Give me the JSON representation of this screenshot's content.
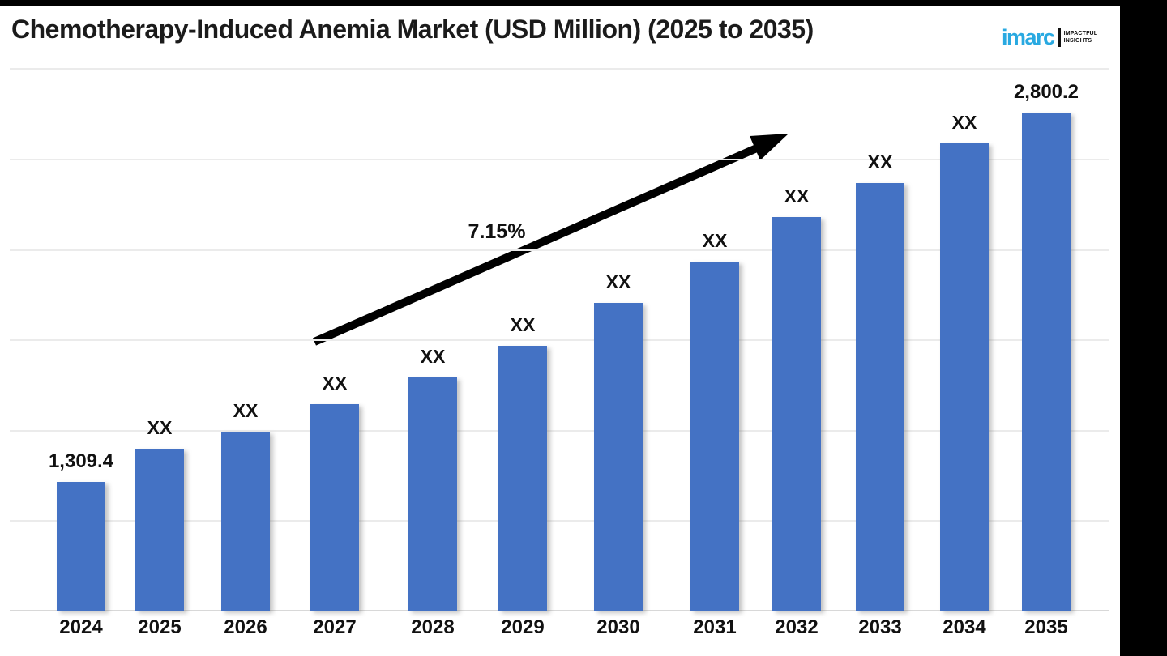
{
  "page": {
    "title": "Chemotherapy-Induced Anemia Market (USD Million) (2025 to 2035)"
  },
  "logo": {
    "brand": "imarc",
    "tagline_line1": "IMPACTFUL",
    "tagline_line2": "INSIGHTS",
    "brand_color": "#29A9E1"
  },
  "chart_data": {
    "type": "bar",
    "title": "Chemotherapy-Induced Anemia Market (USD Million) (2025 to 2035)",
    "categories": [
      "2024",
      "2025",
      "2026",
      "2027",
      "2028",
      "2029",
      "2030",
      "2031",
      "2032",
      "2033",
      "2034",
      "2035"
    ],
    "value_labels": [
      "1,309.4",
      "XX",
      "XX",
      "XX",
      "XX",
      "XX",
      "XX",
      "XX",
      "XX",
      "XX",
      "XX",
      "2,800.2"
    ],
    "values": [
      1309.4,
      null,
      null,
      null,
      null,
      null,
      null,
      null,
      null,
      null,
      null,
      2800.2
    ],
    "annotation": "7.15%",
    "annotation_meaning": "CAGR growth arrow",
    "bar_color": "#4472C4",
    "grid": true,
    "legend": false,
    "xlabel": "",
    "ylabel": ""
  }
}
